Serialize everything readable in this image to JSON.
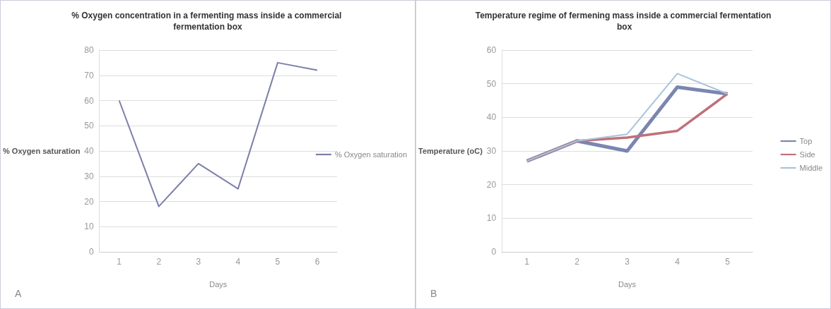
{
  "chart_data": [
    {
      "type": "line",
      "title": "% Oxygen concentration in a fermenting mass inside a commercial fermentation box",
      "xlabel": "Days",
      "ylabel": "% Oxygen saturation",
      "categories": [
        "1",
        "2",
        "3",
        "4",
        "5",
        "6"
      ],
      "series": [
        {
          "name": "% Oxygen saturation",
          "color": "#7b7fa8",
          "values": [
            60,
            18,
            35,
            25,
            75,
            72
          ]
        }
      ],
      "ylim": [
        0,
        80
      ],
      "yticks": [
        0,
        10,
        20,
        30,
        40,
        50,
        60,
        70,
        80
      ],
      "grid": "y",
      "legend": "right",
      "marker": "none",
      "line_style": "solid",
      "annotations": [
        "A"
      ]
    },
    {
      "type": "line",
      "title": "Temperature regime of fermening mass inside a commercial fermentation box",
      "xlabel": "Days",
      "ylabel": "Temperature (oC)",
      "categories": [
        "1",
        "2",
        "3",
        "4",
        "5"
      ],
      "series": [
        {
          "name": "Top",
          "color": "#7a86b0",
          "values": [
            27,
            33,
            30,
            49,
            47
          ]
        },
        {
          "name": "Side",
          "color": "#c0707a",
          "values": [
            27,
            33,
            34,
            36,
            47
          ]
        },
        {
          "name": "Middle",
          "color": "#a8c4dc",
          "values": [
            27,
            33,
            35,
            53,
            47
          ]
        }
      ],
      "ylim": [
        0,
        60
      ],
      "yticks": [
        0,
        10,
        20,
        30,
        40,
        50,
        60
      ],
      "grid": "y",
      "legend": "right",
      "marker": "none",
      "line_style": "solid",
      "annotations": [
        "B"
      ]
    }
  ]
}
